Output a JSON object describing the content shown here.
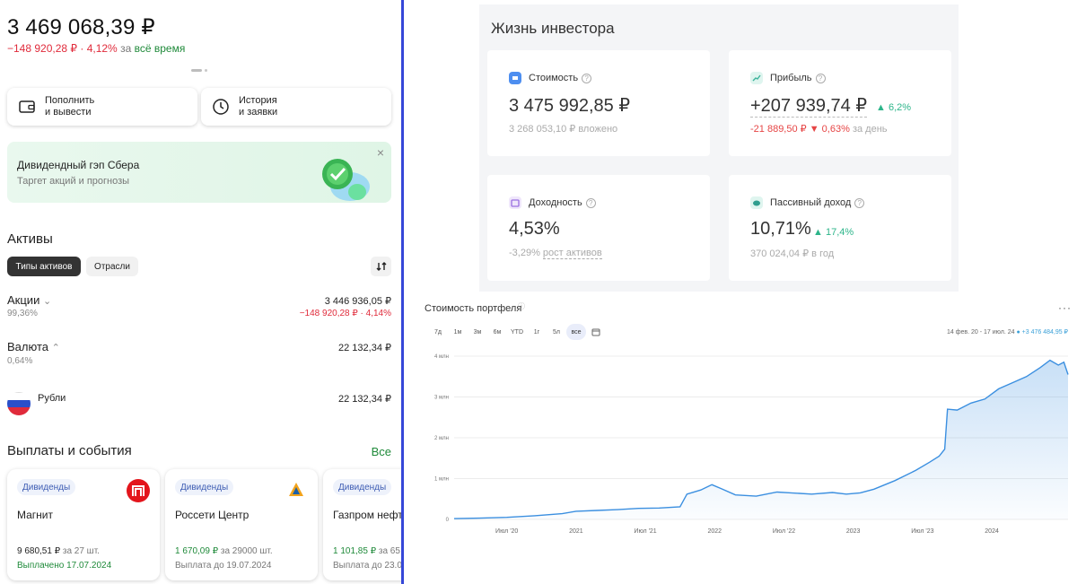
{
  "portfolio": {
    "total": "3 469 068,39 ₽",
    "change_value": "−148 920,28 ₽ · 4,12%",
    "change_label": "за",
    "change_period": "всё время"
  },
  "actions": [
    {
      "label": "Пополнить\nи вывести"
    },
    {
      "label": "История\nи заявки"
    }
  ],
  "promo": {
    "title": "Дивидендный гэп Сбера",
    "subtitle": "Таргет акций и прогнозы",
    "close": "×"
  },
  "assets": {
    "title": "Активы",
    "tabs": [
      "Типы активов",
      "Отрасли"
    ],
    "rows": [
      {
        "name": "Акции",
        "share": "99,36%",
        "value": "3 446 936,05 ₽",
        "change": "−148 920,28 ₽ · 4,14%",
        "chevron": "⌄"
      },
      {
        "name": "Валюта",
        "share": "0,64%",
        "value": "22 132,34 ₽",
        "chevron": "⌃"
      },
      {
        "name": "Рубли",
        "value": "22 132,34 ₽"
      }
    ]
  },
  "events": {
    "title": "Выплаты и события",
    "all_link": "Все",
    "cards": [
      {
        "tag": "Дивиденды",
        "name": "Магнит",
        "amount": "9 680,51 ₽",
        "qty": "за 27 шт.",
        "status": "Выплачено 17.07.2024"
      },
      {
        "tag": "Дивиденды",
        "name": "Россети Центр",
        "amount": "1 670,09 ₽",
        "qty": "за 29000 шт.",
        "status": "Выплата до 19.07.2024"
      },
      {
        "tag": "Дивиденды",
        "name": "Газпром нефт",
        "amount": "1 101,85 ₽",
        "qty": "за 65",
        "status": "Выплата до 23.0"
      }
    ]
  },
  "investor": {
    "title": "Жизнь инвестора",
    "cards": [
      {
        "label": "Стоимость",
        "value": "3 475 992,85 ₽",
        "note": "3 268 053,10 ₽ вложено",
        "icon": "wallet-icon",
        "icon_color": "#4d8ef0"
      },
      {
        "label": "Прибыль",
        "value": "+207 939,74 ₽",
        "pct": "6,2%",
        "note_red": "-21 889,50 ₽",
        "note_pct": "0,63%",
        "note_tail": "за день",
        "icon": "chart-up-icon",
        "icon_color": "#3cb39b"
      },
      {
        "label": "Доходность",
        "value": "4,53%",
        "note_pct": "-3,29%",
        "note_tail": "рост активов",
        "icon": "calendar-icon",
        "icon_color": "#9a6fe0"
      },
      {
        "label": "Пассивный доход",
        "value": "10,71%",
        "pct": "17,4%",
        "note": "370 024,04 ₽ в год",
        "icon": "piggy-bank-icon",
        "icon_color": "#2f9e8e"
      }
    ],
    "q": "?"
  },
  "portfolio_chart": {
    "title": "Стоимость портфеля",
    "periods": [
      "7д",
      "1м",
      "3м",
      "6м",
      "YTD",
      "1г",
      "5л",
      "все"
    ],
    "selected_period": "все",
    "range_label": "14 фев. 20 - 17 июл. 24",
    "range_value": "+3 476 484,95 ₽",
    "menu": "···"
  },
  "chart_data": {
    "type": "area",
    "title": "Стоимость портфеля",
    "y_tick_labels": [
      "0",
      "1 млн",
      "2 млн",
      "3 млн",
      "4 млн"
    ],
    "y_ticks": [
      0,
      1,
      2,
      3,
      4
    ],
    "ylim": [
      0,
      4
    ],
    "y_unit_label": "млн",
    "x_tick_labels": [
      "Июл '20",
      "2021",
      "Июл '21",
      "2022",
      "Июл '22",
      "2023",
      "Июл '23",
      "2024"
    ],
    "x_ticks": [
      2020.5,
      2021.0,
      2021.5,
      2022.0,
      2022.5,
      2023.0,
      2023.5,
      2024.0
    ],
    "xlim": [
      2020.12,
      2024.55
    ],
    "series": [
      {
        "color": "#3b8fe0",
        "x": [
          2020.12,
          2020.3,
          2020.5,
          2020.7,
          2020.9,
          2021.0,
          2021.15,
          2021.3,
          2021.45,
          2021.6,
          2021.75,
          2021.8,
          2021.9,
          2021.98,
          2022.05,
          2022.15,
          2022.3,
          2022.45,
          2022.55,
          2022.7,
          2022.85,
          2022.95,
          2023.05,
          2023.15,
          2023.3,
          2023.45,
          2023.55,
          2023.62,
          2023.66,
          2023.68,
          2023.75,
          2023.85,
          2023.95,
          2024.05,
          2024.15,
          2024.25,
          2024.35,
          2024.42,
          2024.48,
          2024.52,
          2024.55
        ],
        "y": [
          0.02,
          0.03,
          0.05,
          0.09,
          0.14,
          0.2,
          0.22,
          0.24,
          0.27,
          0.28,
          0.31,
          0.62,
          0.72,
          0.85,
          0.75,
          0.6,
          0.57,
          0.67,
          0.65,
          0.62,
          0.66,
          0.62,
          0.65,
          0.74,
          0.95,
          1.2,
          1.4,
          1.55,
          1.72,
          2.7,
          2.68,
          2.85,
          2.95,
          3.2,
          3.35,
          3.5,
          3.72,
          3.9,
          3.78,
          3.85,
          3.55
        ]
      }
    ]
  }
}
